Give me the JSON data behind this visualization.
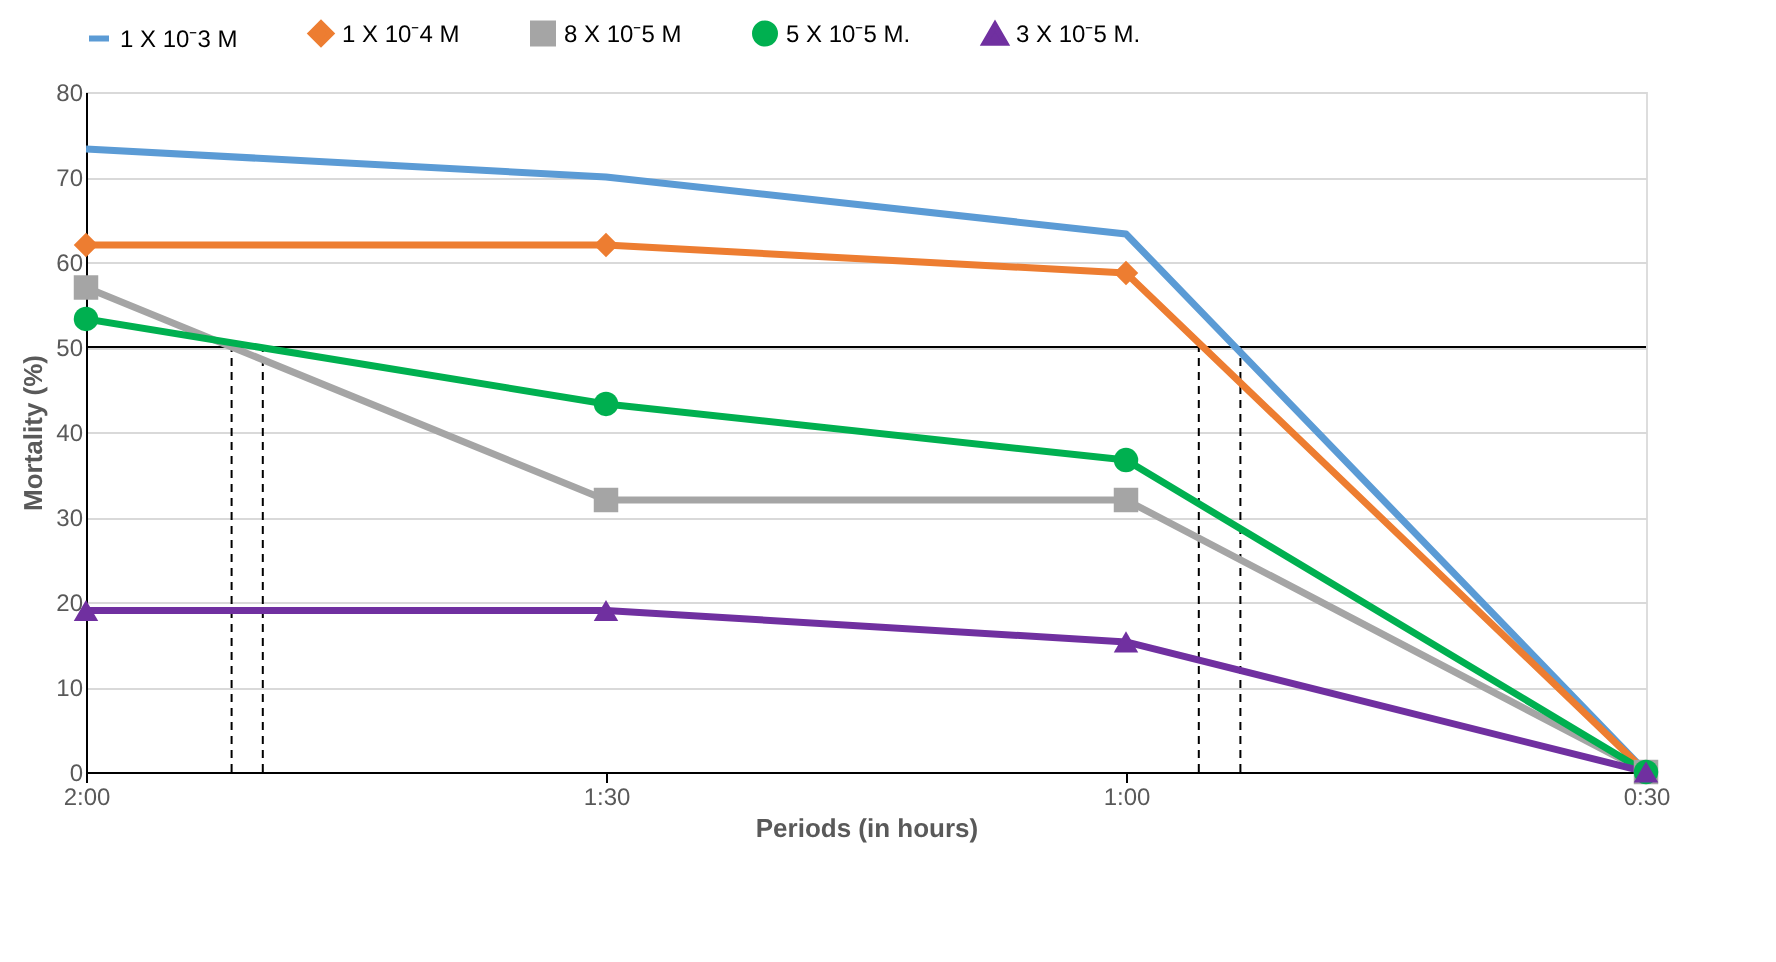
{
  "chart_data": {
    "type": "line",
    "xlabel": "Periods (in hours)",
    "ylabel": "Mortality (%)",
    "x": [
      2,
      1.5,
      1,
      0.5
    ],
    "xlim": [
      2,
      0.5
    ],
    "xticks": [
      {
        "value": 2,
        "label": "2:00"
      },
      {
        "value": 1.5,
        "label": "1:30"
      },
      {
        "value": 1,
        "label": "1:00"
      },
      {
        "value": 0.5,
        "label": "0:30"
      }
    ],
    "ylim": [
      0,
      80
    ],
    "yticks": [
      0,
      10,
      20,
      30,
      40,
      50,
      60,
      70,
      80
    ],
    "grid": "y",
    "legend": "top",
    "series": [
      {
        "name": "1 X 10⁻3 M",
        "color": "#5b9bd5",
        "marker": "none",
        "values": [
          73.3,
          70,
          63.3,
          0
        ]
      },
      {
        "name": "1 X 10⁻4 M",
        "color": "#ed7d31",
        "marker": "diamond",
        "values": [
          62,
          62,
          58.7,
          0
        ]
      },
      {
        "name": "8 X 10⁻5 M",
        "color": "#a5a5a5",
        "marker": "square",
        "values": [
          57,
          32,
          32,
          0
        ]
      },
      {
        "name": "5 X 10⁻5 M.",
        "color": "#00b050",
        "marker": "circle",
        "values": [
          53.3,
          43.3,
          36.7,
          0
        ]
      },
      {
        "name": "3 X 10⁻5 M.",
        "color": "#7030a0",
        "marker": "triangle",
        "values": [
          19,
          19,
          15.3,
          0
        ]
      }
    ],
    "ref_lines": [
      {
        "axis": "y",
        "value": 50,
        "color": "#000000",
        "line_style": "solid"
      },
      {
        "axis": "x",
        "value": 1.86,
        "color": "#000000",
        "line_style": "dashed"
      },
      {
        "axis": "x",
        "value": 1.83,
        "color": "#000000",
        "line_style": "dashed"
      },
      {
        "axis": "x",
        "value": 0.93,
        "color": "#000000",
        "line_style": "dashed"
      },
      {
        "axis": "x",
        "value": 0.89,
        "color": "#000000",
        "line_style": "dashed"
      }
    ]
  }
}
